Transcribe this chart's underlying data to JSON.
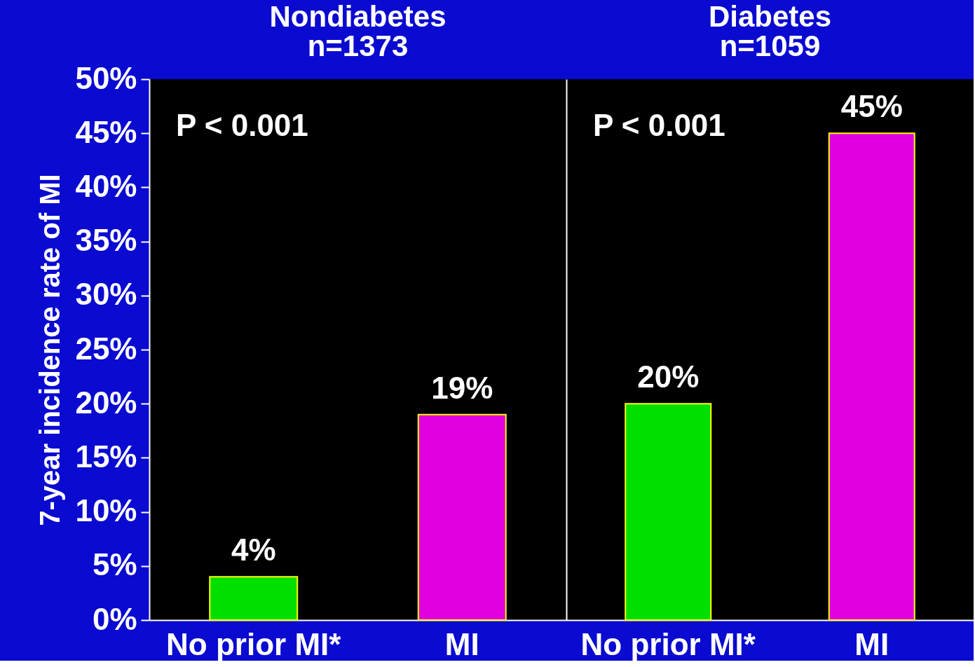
{
  "chart_data": [
    {
      "type": "bar",
      "title": "Nondiabetes",
      "subtitle": "n=1373",
      "ylabel": "7-year incidence rate of MI",
      "categories": [
        "No prior MI*",
        "MI"
      ],
      "values": [
        4,
        19
      ],
      "colors": [
        "#00e000",
        "#e000e0"
      ],
      "value_labels": [
        "4%",
        "19%"
      ],
      "annotations": [
        "P < 0.001"
      ],
      "ylim": [
        0,
        50
      ],
      "yticks": [
        {
          "value": 0,
          "label": "0%"
        },
        {
          "value": 5,
          "label": "5%"
        },
        {
          "value": 10,
          "label": "10%"
        },
        {
          "value": 15,
          "label": "15%"
        },
        {
          "value": 20,
          "label": "20%"
        },
        {
          "value": 25,
          "label": "25%"
        },
        {
          "value": 30,
          "label": "30%"
        },
        {
          "value": 35,
          "label": "35%"
        },
        {
          "value": 40,
          "label": "40%"
        },
        {
          "value": 45,
          "label": "45%"
        },
        {
          "value": 50,
          "label": "50%"
        }
      ],
      "grid": false
    },
    {
      "type": "bar",
      "title": "Diabetes",
      "subtitle": "n=1059",
      "categories": [
        "No prior MI*",
        "MI"
      ],
      "values": [
        20,
        45
      ],
      "colors": [
        "#00e000",
        "#e000e0"
      ],
      "value_labels": [
        "20%",
        "45%"
      ],
      "annotations": [
        "P < 0.001"
      ],
      "ylim": [
        0,
        50
      ],
      "tick_labels": "x",
      "grid": false
    }
  ]
}
